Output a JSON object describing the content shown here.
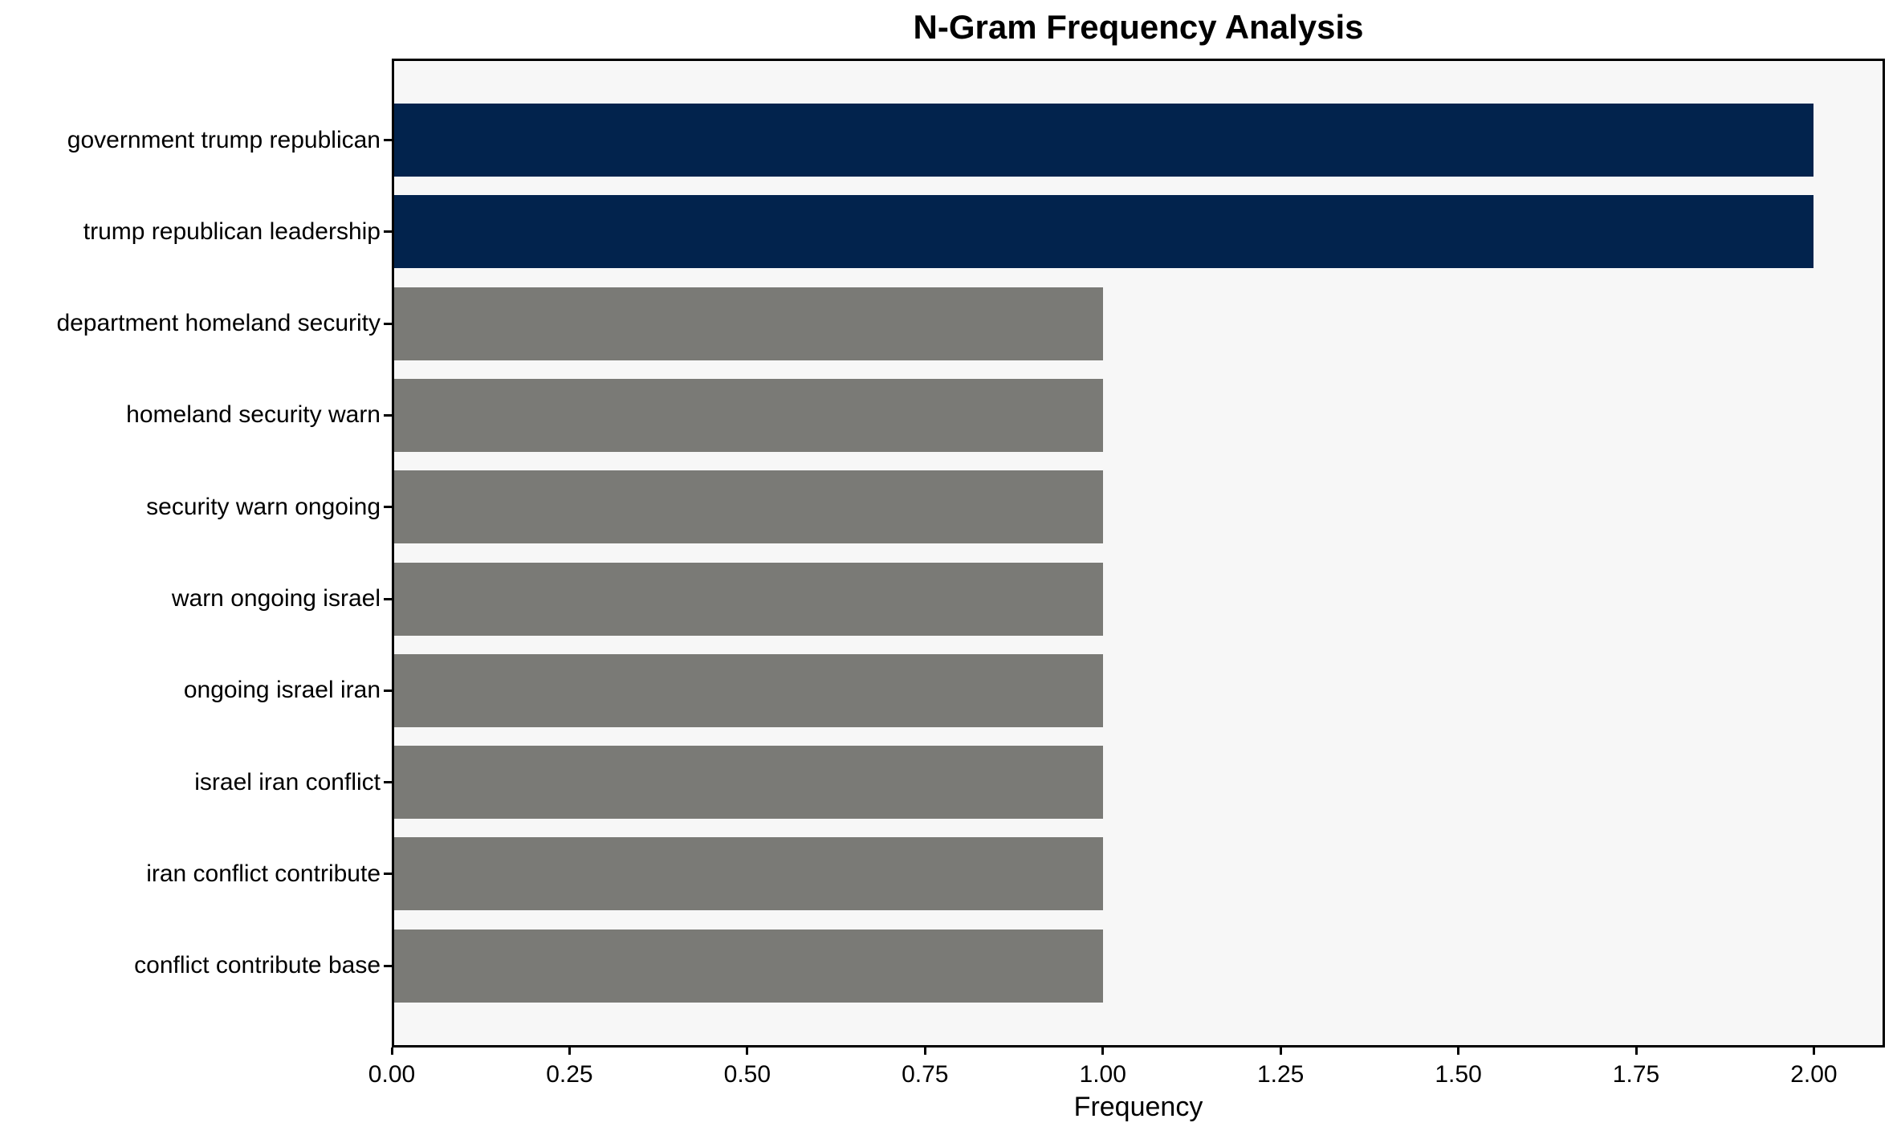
{
  "chart_data": {
    "type": "bar",
    "orientation": "horizontal",
    "title": "N-Gram Frequency Analysis",
    "xlabel": "Frequency",
    "ylabel": "",
    "categories": [
      "government trump republican",
      "trump republican leadership",
      "department homeland security",
      "homeland security warn",
      "security warn ongoing",
      "warn ongoing israel",
      "ongoing israel iran",
      "israel iran conflict",
      "iran conflict contribute",
      "conflict contribute base"
    ],
    "values": [
      2,
      2,
      1,
      1,
      1,
      1,
      1,
      1,
      1,
      1
    ],
    "bar_colors": [
      "#02234d",
      "#02234d",
      "#7a7a76",
      "#7a7a76",
      "#7a7a76",
      "#7a7a76",
      "#7a7a76",
      "#7a7a76",
      "#7a7a76",
      "#7a7a76"
    ],
    "xlim": [
      0,
      2.1
    ],
    "xticks": [
      {
        "value": 0.0,
        "label": "0.00"
      },
      {
        "value": 0.25,
        "label": "0.25"
      },
      {
        "value": 0.5,
        "label": "0.50"
      },
      {
        "value": 0.75,
        "label": "0.75"
      },
      {
        "value": 1.0,
        "label": "1.00"
      },
      {
        "value": 1.25,
        "label": "1.25"
      },
      {
        "value": 1.5,
        "label": "1.50"
      },
      {
        "value": 1.75,
        "label": "1.75"
      },
      {
        "value": 2.0,
        "label": "2.00"
      }
    ],
    "grid": false,
    "legend": null,
    "colors": {
      "highlight_bar": "#02234d",
      "regular_bar": "#7a7a76",
      "plot_background": "#f7f7f7",
      "figure_background": "#ffffff",
      "spine": "#000000",
      "text": "#000000"
    }
  }
}
